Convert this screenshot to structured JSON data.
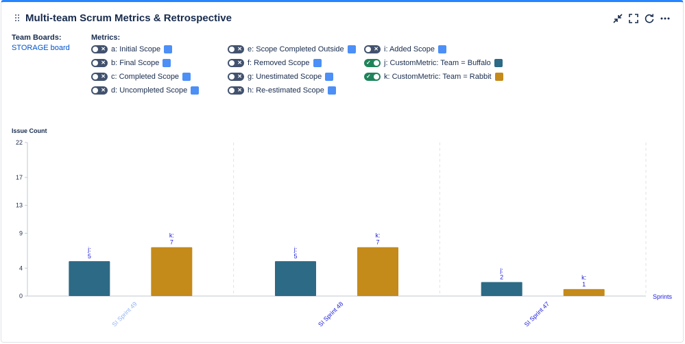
{
  "header": {
    "title": "Multi-team Scrum Metrics & Retrospective"
  },
  "team_boards": {
    "label": "Team Boards:",
    "link": "STORAGE board"
  },
  "metrics": {
    "label": "Metrics:",
    "items": [
      {
        "label": "a: Initial Scope",
        "on": false,
        "color": "#4c8ff7"
      },
      {
        "label": "b: Final Scope",
        "on": false,
        "color": "#4c8ff7"
      },
      {
        "label": "c: Completed Scope",
        "on": false,
        "color": "#4c8ff7"
      },
      {
        "label": "d: Uncompleted Scope",
        "on": false,
        "color": "#4c8ff7"
      },
      {
        "label": "e: Scope Completed Outside",
        "on": false,
        "color": "#4c8ff7"
      },
      {
        "label": "f: Removed Scope",
        "on": false,
        "color": "#4c8ff7"
      },
      {
        "label": "g: Unestimated Scope",
        "on": false,
        "color": "#4c8ff7"
      },
      {
        "label": "h: Re-estimated Scope",
        "on": false,
        "color": "#4c8ff7"
      },
      {
        "label": "i: Added Scope",
        "on": false,
        "color": "#4c8ff7"
      },
      {
        "label": "j: CustomMetric: Team = Buffalo",
        "on": true,
        "color": "#2d6a85"
      },
      {
        "label": "k: CustomMetric: Team = Rabbit",
        "on": true,
        "color": "#c48a1a"
      }
    ]
  },
  "chart_data": {
    "type": "bar",
    "ylabel": "Issue Count",
    "xlabel": "Sprints",
    "ylim": [
      0,
      22
    ],
    "yticks": [
      "0",
      "4",
      "9",
      "13",
      "17",
      "22"
    ],
    "categories": [
      "SI Sprint 49",
      "SI Sprint 48",
      "SI Sprint 47"
    ],
    "series": [
      {
        "name": "j",
        "color": "#2d6a85",
        "values": [
          5,
          5,
          2
        ]
      },
      {
        "name": "k",
        "color": "#c48a1a",
        "values": [
          7,
          7,
          1
        ]
      }
    ],
    "category_colors": [
      "#94b5f0",
      "#1a1adb",
      "#1a1adb"
    ]
  }
}
